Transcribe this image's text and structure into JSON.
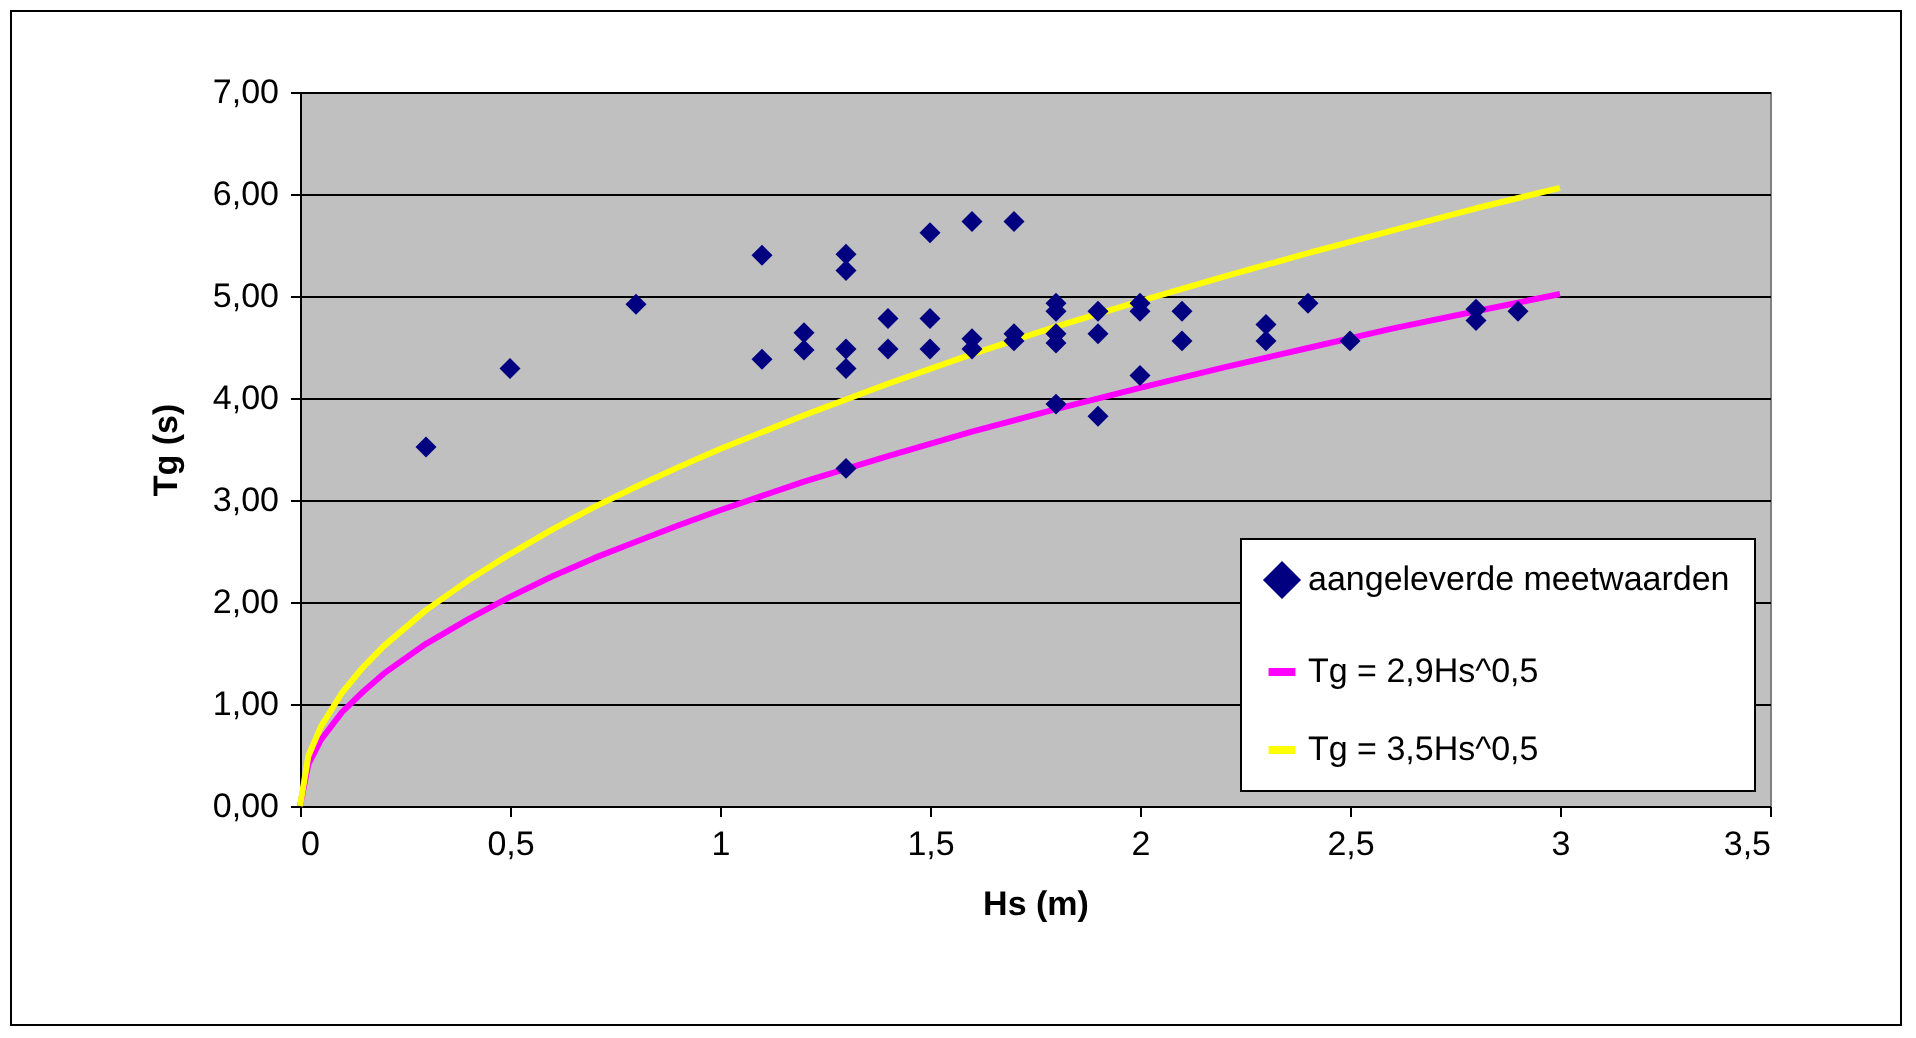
{
  "chart_data": {
    "type": "scatter",
    "xlabel": "Hs (m)",
    "ylabel": "Tg (s)",
    "xlim": [
      0,
      3.5
    ],
    "xticks": [
      0,
      {
        "value": 0.5,
        "label": "0,5"
      },
      1,
      {
        "value": 1.5,
        "label": "1,5"
      },
      2,
      {
        "value": 2.5,
        "label": "2,5"
      },
      3,
      {
        "value": 3.5,
        "label": "3,5"
      }
    ],
    "ylim": [
      0,
      7
    ],
    "yticks": [
      {
        "value": 0,
        "label": "0,00"
      },
      {
        "value": 1,
        "label": "1,00"
      },
      {
        "value": 2,
        "label": "2,00"
      },
      {
        "value": 3,
        "label": "3,00"
      },
      {
        "value": 4,
        "label": "4,00"
      },
      {
        "value": 5,
        "label": "5,00"
      },
      {
        "value": 6,
        "label": "6,00"
      },
      {
        "value": 7,
        "label": "7,00"
      }
    ],
    "grid": "y",
    "legend": "bottom right",
    "series": [
      {
        "name": "aangeleverde meetwaarden",
        "marker": "diamond",
        "color": "#000080",
        "x": [
          0.3,
          0.5,
          0.8,
          1.1,
          1.1,
          1.2,
          1.2,
          1.3,
          1.3,
          1.3,
          1.3,
          1.3,
          1.4,
          1.4,
          1.5,
          1.5,
          1.5,
          1.6,
          1.6,
          1.6,
          1.7,
          1.7,
          1.7,
          1.8,
          1.8,
          1.8,
          1.8,
          1.8,
          1.9,
          1.9,
          1.9,
          2.0,
          2.0,
          2.0,
          2.1,
          2.1,
          2.3,
          2.3,
          2.4,
          2.5,
          2.8,
          2.8,
          2.9
        ],
        "values": [
          3.52,
          4.29,
          4.92,
          5.4,
          4.38,
          4.64,
          4.47,
          5.41,
          5.25,
          4.48,
          4.29,
          3.31,
          4.78,
          4.48,
          5.62,
          4.78,
          4.48,
          5.73,
          4.58,
          4.48,
          5.73,
          4.63,
          4.56,
          4.93,
          4.85,
          4.63,
          4.54,
          3.94,
          4.85,
          4.63,
          3.82,
          4.93,
          4.85,
          4.22,
          4.85,
          4.56,
          4.72,
          4.56,
          4.93,
          4.56,
          4.87,
          4.76,
          4.85
        ]
      },
      {
        "name": "Tg = 2,9Hs^0,5",
        "type": "line",
        "color": "#ff00ff",
        "x": [
          0,
          0.02,
          0.05,
          0.1,
          0.15,
          0.2,
          0.3,
          0.4,
          0.5,
          0.6,
          0.7,
          0.8,
          0.9,
          1.0,
          1.2,
          1.4,
          1.6,
          1.8,
          2.0,
          2.2,
          2.4,
          2.6,
          2.8,
          3.0
        ],
        "values": [
          0,
          0.41,
          0.65,
          0.92,
          1.12,
          1.3,
          1.59,
          1.83,
          2.05,
          2.25,
          2.43,
          2.59,
          2.75,
          2.9,
          3.18,
          3.43,
          3.67,
          3.89,
          4.1,
          4.3,
          4.49,
          4.68,
          4.85,
          5.02
        ]
      },
      {
        "name": "Tg = 3,5Hs^0,5",
        "type": "line",
        "color": "#ffff00",
        "x": [
          0,
          0.02,
          0.05,
          0.1,
          0.15,
          0.2,
          0.3,
          0.4,
          0.5,
          0.6,
          0.7,
          0.8,
          0.9,
          1.0,
          1.2,
          1.4,
          1.6,
          1.8,
          2.0,
          2.2,
          2.4,
          2.6,
          2.8,
          3.0
        ],
        "values": [
          0,
          0.49,
          0.78,
          1.11,
          1.36,
          1.57,
          1.92,
          2.21,
          2.47,
          2.71,
          2.93,
          3.13,
          3.32,
          3.5,
          3.83,
          4.14,
          4.43,
          4.7,
          4.95,
          5.19,
          5.42,
          5.64,
          5.86,
          6.06
        ]
      }
    ]
  }
}
